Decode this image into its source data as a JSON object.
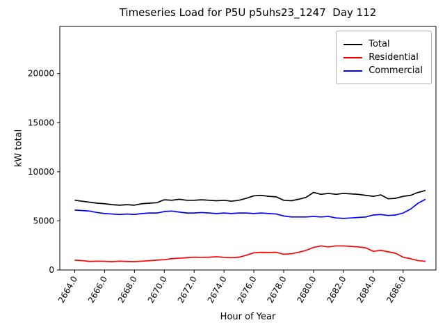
{
  "chart_data": {
    "type": "line",
    "title": "Timeseries Load for P5U p5uhs23_1247  Day 112",
    "xlabel": "Hour of Year",
    "ylabel": "kW total",
    "xlim": [
      2663.0,
      2688.2
    ],
    "ylim": [
      0,
      24800
    ],
    "grid": false,
    "legend_position": "upper right",
    "xticks": [
      2664,
      2666,
      2668,
      2670,
      2672,
      2674,
      2676,
      2678,
      2680,
      2682,
      2684,
      2686
    ],
    "xtick_labels": [
      "2664.0",
      "2666.0",
      "2668.0",
      "2670.0",
      "2672.0",
      "2674.0",
      "2676.0",
      "2678.0",
      "2680.0",
      "2682.0",
      "2684.0",
      "2686.0"
    ],
    "yticks": [
      0,
      5000,
      10000,
      15000,
      20000
    ],
    "ytick_labels": [
      "0",
      "5000",
      "10000",
      "15000",
      "20000"
    ],
    "x": [
      2664.0,
      2664.5,
      2665.0,
      2665.5,
      2666.0,
      2666.5,
      2667.0,
      2667.5,
      2668.0,
      2668.5,
      2669.0,
      2669.5,
      2670.0,
      2670.5,
      2671.0,
      2671.5,
      2672.0,
      2672.5,
      2673.0,
      2673.5,
      2674.0,
      2674.5,
      2675.0,
      2675.5,
      2676.0,
      2676.5,
      2677.0,
      2677.5,
      2678.0,
      2678.5,
      2679.0,
      2679.5,
      2680.0,
      2680.5,
      2681.0,
      2681.5,
      2682.0,
      2682.5,
      2683.0,
      2683.5,
      2684.0,
      2684.5,
      2685.0,
      2685.5,
      2686.0,
      2686.5,
      2687.0,
      2687.5
    ],
    "series": [
      {
        "name": "Total",
        "color": "#000000",
        "values": [
          7100,
          7000,
          6900,
          6800,
          6750,
          6650,
          6600,
          6650,
          6600,
          6750,
          6800,
          6850,
          7150,
          7100,
          7200,
          7100,
          7100,
          7150,
          7100,
          7050,
          7100,
          7000,
          7100,
          7300,
          7550,
          7600,
          7500,
          7450,
          7100,
          7050,
          7200,
          7400,
          7900,
          7700,
          7800,
          7700,
          7800,
          7750,
          7700,
          7600,
          7500,
          7650,
          7250,
          7300,
          7500,
          7600,
          7900,
          8100
        ]
      },
      {
        "name": "Residential",
        "color": "#ff0000",
        "values": [
          1000,
          950,
          870,
          900,
          880,
          850,
          900,
          870,
          850,
          900,
          950,
          1000,
          1050,
          1150,
          1200,
          1250,
          1300,
          1280,
          1300,
          1350,
          1280,
          1250,
          1300,
          1500,
          1750,
          1800,
          1780,
          1800,
          1600,
          1650,
          1800,
          2000,
          2300,
          2450,
          2350,
          2450,
          2450,
          2400,
          2350,
          2250,
          1900,
          2000,
          1850,
          1700,
          1300,
          1150,
          950,
          880
        ]
      },
      {
        "name": "Commercial",
        "color": "#0000ff",
        "values": [
          6100,
          6050,
          6000,
          5850,
          5750,
          5700,
          5650,
          5700,
          5650,
          5750,
          5800,
          5800,
          5950,
          6000,
          5900,
          5800,
          5800,
          5850,
          5800,
          5750,
          5800,
          5750,
          5800,
          5800,
          5750,
          5800,
          5750,
          5700,
          5500,
          5400,
          5400,
          5400,
          5450,
          5400,
          5450,
          5300,
          5250,
          5300,
          5350,
          5400,
          5600,
          5650,
          5550,
          5600,
          5800,
          6200,
          6800,
          7200
        ]
      }
    ]
  }
}
